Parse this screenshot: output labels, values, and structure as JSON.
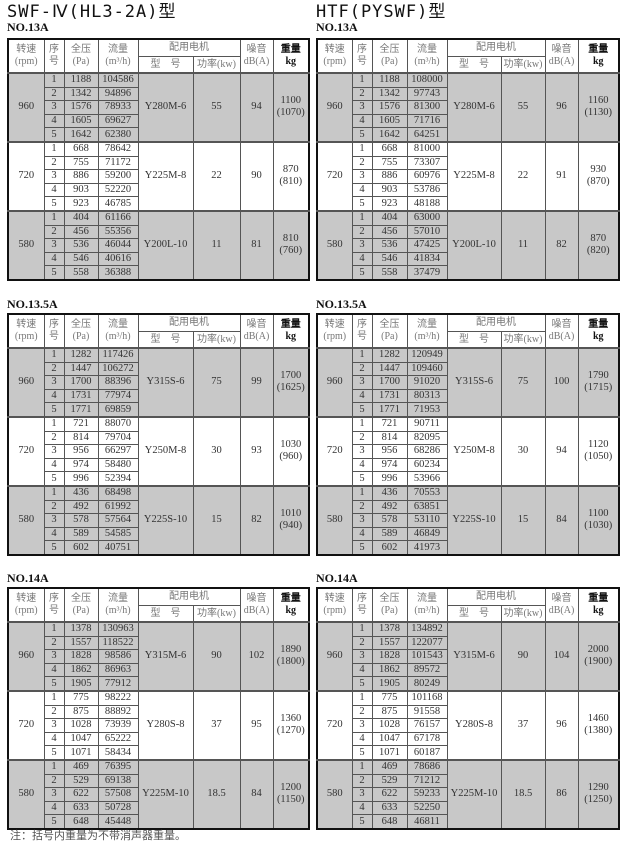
{
  "headers": {
    "speed": "转速",
    "speed_unit": "(rpm)",
    "seq": "序",
    "seq2": "号",
    "pressure": "全压",
    "pressure_unit": "(Pa)",
    "flow": "流量",
    "flow_unit": "(m³/h)",
    "motor": "配用电机",
    "motor_model": "型　号",
    "motor_power": "功率(kw)",
    "noise": "噪音",
    "noise_unit": "dB(A)",
    "weight": "重量",
    "weight_unit": "kg"
  },
  "series": [
    {
      "title": "SWF-Ⅳ(HL3-2A)型",
      "tables": [
        {
          "model_no": "NO.13A",
          "groups": [
            {
              "speed": "960",
              "motor": "Y280M-6",
              "power": "55",
              "noise": "94",
              "weight": "1100",
              "weight_alt": "(1070)",
              "rows": [
                [
                  "1",
                  "1188",
                  "104586"
                ],
                [
                  "2",
                  "1342",
                  "94896"
                ],
                [
                  "3",
                  "1576",
                  "78933"
                ],
                [
                  "4",
                  "1605",
                  "69627"
                ],
                [
                  "5",
                  "1642",
                  "62380"
                ]
              ]
            },
            {
              "speed": "720",
              "motor": "Y225M-8",
              "power": "22",
              "noise": "90",
              "weight": "870",
              "weight_alt": "(810)",
              "rows": [
                [
                  "1",
                  "668",
                  "78642"
                ],
                [
                  "2",
                  "755",
                  "71172"
                ],
                [
                  "3",
                  "886",
                  "59200"
                ],
                [
                  "4",
                  "903",
                  "52220"
                ],
                [
                  "5",
                  "923",
                  "46785"
                ]
              ]
            },
            {
              "speed": "580",
              "motor": "Y200L-10",
              "power": "11",
              "noise": "81",
              "weight": "810",
              "weight_alt": "(760)",
              "rows": [
                [
                  "1",
                  "404",
                  "61166"
                ],
                [
                  "2",
                  "456",
                  "55356"
                ],
                [
                  "3",
                  "536",
                  "46044"
                ],
                [
                  "4",
                  "546",
                  "40616"
                ],
                [
                  "5",
                  "558",
                  "36388"
                ]
              ]
            }
          ]
        },
        {
          "model_no": "NO.13.5A",
          "groups": [
            {
              "speed": "960",
              "motor": "Y315S-6",
              "power": "75",
              "noise": "99",
              "weight": "1700",
              "weight_alt": "(1625)",
              "rows": [
                [
                  "1",
                  "1282",
                  "117426"
                ],
                [
                  "2",
                  "1447",
                  "106272"
                ],
                [
                  "3",
                  "1700",
                  "88396"
                ],
                [
                  "4",
                  "1731",
                  "77974"
                ],
                [
                  "5",
                  "1771",
                  "69859"
                ]
              ]
            },
            {
              "speed": "720",
              "motor": "Y250M-8",
              "power": "30",
              "noise": "93",
              "weight": "1030",
              "weight_alt": "(960)",
              "rows": [
                [
                  "1",
                  "721",
                  "88070"
                ],
                [
                  "2",
                  "814",
                  "79704"
                ],
                [
                  "3",
                  "956",
                  "66297"
                ],
                [
                  "4",
                  "974",
                  "58480"
                ],
                [
                  "5",
                  "996",
                  "52394"
                ]
              ]
            },
            {
              "speed": "580",
              "motor": "Y225S-10",
              "power": "15",
              "noise": "82",
              "weight": "1010",
              "weight_alt": "(940)",
              "rows": [
                [
                  "1",
                  "436",
                  "68498"
                ],
                [
                  "2",
                  "492",
                  "61992"
                ],
                [
                  "3",
                  "578",
                  "57564"
                ],
                [
                  "4",
                  "589",
                  "54585"
                ],
                [
                  "5",
                  "602",
                  "40751"
                ]
              ]
            }
          ]
        },
        {
          "model_no": "NO.14A",
          "groups": [
            {
              "speed": "960",
              "motor": "Y315M-6",
              "power": "90",
              "noise": "102",
              "weight": "1890",
              "weight_alt": "(1800)",
              "rows": [
                [
                  "1",
                  "1378",
                  "130963"
                ],
                [
                  "2",
                  "1557",
                  "118522"
                ],
                [
                  "3",
                  "1828",
                  "98586"
                ],
                [
                  "4",
                  "1862",
                  "86963"
                ],
                [
                  "5",
                  "1905",
                  "77912"
                ]
              ]
            },
            {
              "speed": "720",
              "motor": "Y280S-8",
              "power": "37",
              "noise": "95",
              "weight": "1360",
              "weight_alt": "(1270)",
              "rows": [
                [
                  "1",
                  "775",
                  "98222"
                ],
                [
                  "2",
                  "875",
                  "88892"
                ],
                [
                  "3",
                  "1028",
                  "73939"
                ],
                [
                  "4",
                  "1047",
                  "65222"
                ],
                [
                  "5",
                  "1071",
                  "58434"
                ]
              ]
            },
            {
              "speed": "580",
              "motor": "Y225M-10",
              "power": "18.5",
              "noise": "84",
              "weight": "1200",
              "weight_alt": "(1150)",
              "rows": [
                [
                  "1",
                  "469",
                  "76395"
                ],
                [
                  "2",
                  "529",
                  "69138"
                ],
                [
                  "3",
                  "622",
                  "57508"
                ],
                [
                  "4",
                  "633",
                  "50728"
                ],
                [
                  "5",
                  "648",
                  "45448"
                ]
              ]
            }
          ]
        }
      ]
    },
    {
      "title": "HTF(PYSWF)型",
      "tables": [
        {
          "model_no": "NO.13A",
          "groups": [
            {
              "speed": "960",
              "motor": "Y280M-6",
              "power": "55",
              "noise": "96",
              "weight": "1160",
              "weight_alt": "(1130)",
              "rows": [
                [
                  "1",
                  "1188",
                  "108000"
                ],
                [
                  "2",
                  "1342",
                  "97743"
                ],
                [
                  "3",
                  "1576",
                  "81300"
                ],
                [
                  "4",
                  "1605",
                  "71716"
                ],
                [
                  "5",
                  "1642",
                  "64251"
                ]
              ]
            },
            {
              "speed": "720",
              "motor": "Y225M-8",
              "power": "22",
              "noise": "91",
              "weight": "930",
              "weight_alt": "(870)",
              "rows": [
                [
                  "1",
                  "668",
                  "81000"
                ],
                [
                  "2",
                  "755",
                  "73307"
                ],
                [
                  "3",
                  "886",
                  "60976"
                ],
                [
                  "4",
                  "903",
                  "53786"
                ],
                [
                  "5",
                  "923",
                  "48188"
                ]
              ]
            },
            {
              "speed": "580",
              "motor": "Y200L-10",
              "power": "11",
              "noise": "82",
              "weight": "870",
              "weight_alt": "(820)",
              "rows": [
                [
                  "1",
                  "404",
                  "63000"
                ],
                [
                  "2",
                  "456",
                  "57010"
                ],
                [
                  "3",
                  "536",
                  "47425"
                ],
                [
                  "4",
                  "546",
                  "41834"
                ],
                [
                  "5",
                  "558",
                  "37479"
                ]
              ]
            }
          ]
        },
        {
          "model_no": "NO.13.5A",
          "groups": [
            {
              "speed": "960",
              "motor": "Y315S-6",
              "power": "75",
              "noise": "100",
              "weight": "1790",
              "weight_alt": "(1715)",
              "rows": [
                [
                  "1",
                  "1282",
                  "120949"
                ],
                [
                  "2",
                  "1447",
                  "109460"
                ],
                [
                  "3",
                  "1700",
                  "91020"
                ],
                [
                  "4",
                  "1731",
                  "80313"
                ],
                [
                  "5",
                  "1771",
                  "71953"
                ]
              ]
            },
            {
              "speed": "720",
              "motor": "Y250M-8",
              "power": "30",
              "noise": "94",
              "weight": "1120",
              "weight_alt": "(1050)",
              "rows": [
                [
                  "1",
                  "721",
                  "90711"
                ],
                [
                  "2",
                  "814",
                  "82095"
                ],
                [
                  "3",
                  "956",
                  "68286"
                ],
                [
                  "4",
                  "974",
                  "60234"
                ],
                [
                  "5",
                  "996",
                  "53966"
                ]
              ]
            },
            {
              "speed": "580",
              "motor": "Y225S-10",
              "power": "15",
              "noise": "84",
              "weight": "1100",
              "weight_alt": "(1030)",
              "rows": [
                [
                  "1",
                  "436",
                  "70553"
                ],
                [
                  "2",
                  "492",
                  "63851"
                ],
                [
                  "3",
                  "578",
                  "53110"
                ],
                [
                  "4",
                  "589",
                  "46849"
                ],
                [
                  "5",
                  "602",
                  "41973"
                ]
              ]
            }
          ]
        },
        {
          "model_no": "NO.14A",
          "groups": [
            {
              "speed": "960",
              "motor": "Y315M-6",
              "power": "90",
              "noise": "104",
              "weight": "2000",
              "weight_alt": "(1900)",
              "rows": [
                [
                  "1",
                  "1378",
                  "134892"
                ],
                [
                  "2",
                  "1557",
                  "122077"
                ],
                [
                  "3",
                  "1828",
                  "101543"
                ],
                [
                  "4",
                  "1862",
                  "89572"
                ],
                [
                  "5",
                  "1905",
                  "80249"
                ]
              ]
            },
            {
              "speed": "720",
              "motor": "Y280S-8",
              "power": "37",
              "noise": "96",
              "weight": "1460",
              "weight_alt": "(1380)",
              "rows": [
                [
                  "1",
                  "775",
                  "101168"
                ],
                [
                  "2",
                  "875",
                  "91558"
                ],
                [
                  "3",
                  "1028",
                  "76157"
                ],
                [
                  "4",
                  "1047",
                  "67178"
                ],
                [
                  "5",
                  "1071",
                  "60187"
                ]
              ]
            },
            {
              "speed": "580",
              "motor": "Y225M-10",
              "power": "18.5",
              "noise": "86",
              "weight": "1290",
              "weight_alt": "(1250)",
              "rows": [
                [
                  "1",
                  "469",
                  "78686"
                ],
                [
                  "2",
                  "529",
                  "71212"
                ],
                [
                  "3",
                  "622",
                  "59233"
                ],
                [
                  "4",
                  "633",
                  "52250"
                ],
                [
                  "5",
                  "648",
                  "46811"
                ]
              ]
            }
          ]
        }
      ]
    }
  ],
  "note": "注：括号内重量为不带消声器重量。",
  "colors": {
    "shaded_group": "#c8c8c8",
    "border": "#111111"
  }
}
